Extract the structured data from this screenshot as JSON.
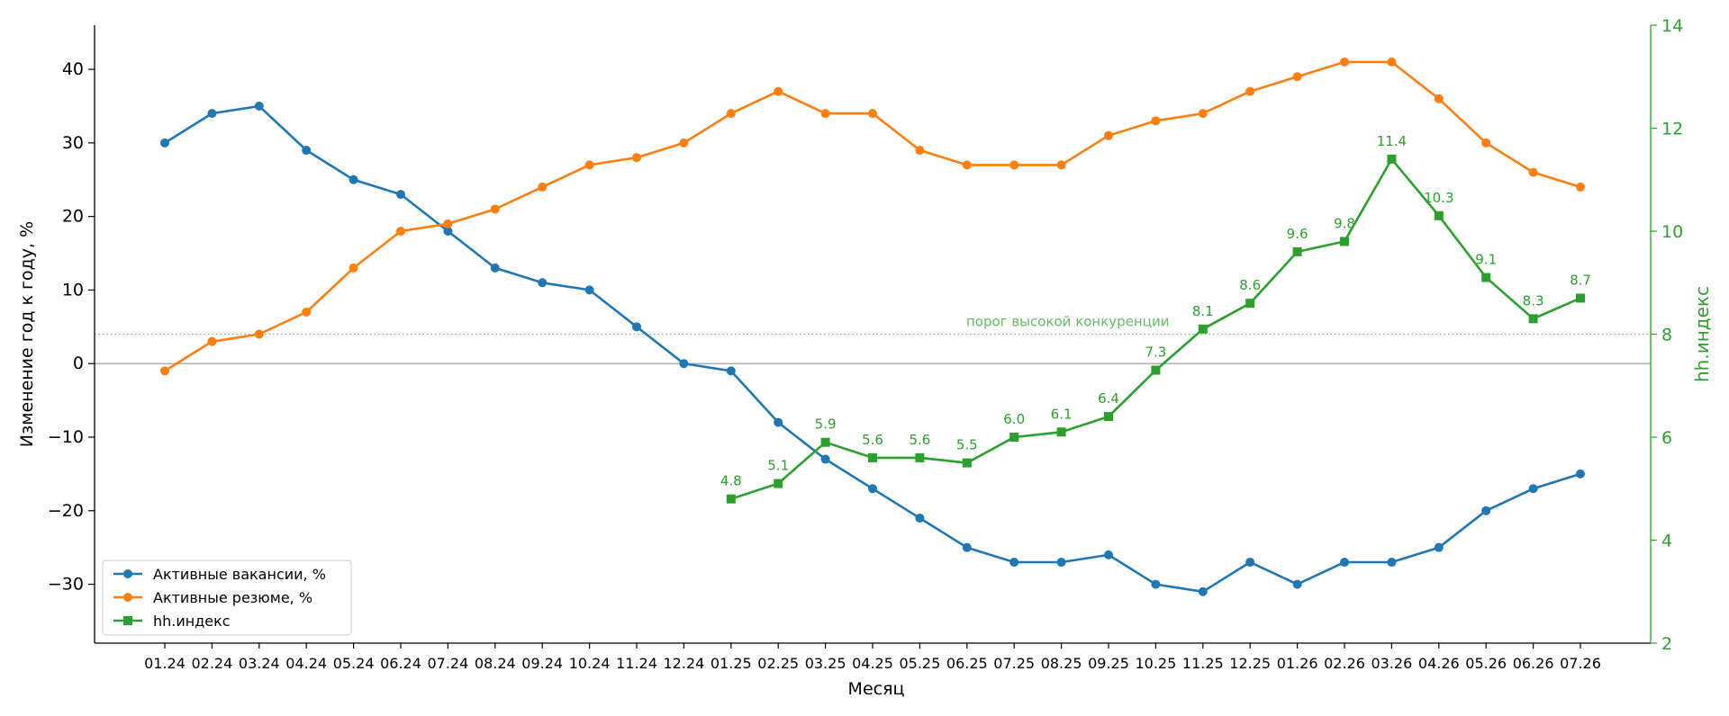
{
  "chart_data": {
    "type": "line",
    "x": [
      "01.24",
      "02.24",
      "03.24",
      "04.24",
      "05.24",
      "06.24",
      "07.24",
      "08.24",
      "09.24",
      "10.24",
      "11.24",
      "12.24",
      "01.25",
      "02.25",
      "03.25",
      "04.25",
      "05.25",
      "06.25",
      "07.25",
      "08.25",
      "09.25",
      "10.25",
      "11.25",
      "12.25",
      "01.26",
      "02.26",
      "03.26",
      "04.26",
      "05.26",
      "06.26",
      "07.26"
    ],
    "xlabel": "Месяц",
    "ylabel": "Изменение год к году, %",
    "y2label": "hh.индекс",
    "ylim": [
      -38,
      46
    ],
    "y2lim": [
      2,
      14
    ],
    "yticks": [
      -30,
      -20,
      -10,
      0,
      10,
      20,
      30,
      40
    ],
    "y2ticks": [
      2,
      4,
      6,
      8,
      10,
      12,
      14
    ],
    "series": [
      {
        "name": "Активные вакансии, %",
        "axis": "left",
        "color": "#1f77b4",
        "marker": "circle",
        "values": [
          30,
          34,
          35,
          29,
          25,
          23,
          18,
          13,
          11,
          10,
          5,
          0,
          -1,
          -8,
          -13,
          -17,
          -21,
          -25,
          -27,
          -27,
          -26,
          -30,
          -31,
          -27,
          -30,
          -27,
          -27,
          -25,
          -20,
          -17,
          -15
        ]
      },
      {
        "name": "Активные резюме, %",
        "axis": "left",
        "color": "#ff7f0e",
        "marker": "circle",
        "values": [
          -1,
          3,
          4,
          7,
          13,
          18,
          19,
          21,
          24,
          27,
          28,
          30,
          34,
          37,
          34,
          34,
          29,
          27,
          27,
          27,
          31,
          33,
          34,
          37,
          39,
          41,
          41,
          36,
          30,
          26,
          24
        ]
      },
      {
        "name": "hh.индекс",
        "axis": "right",
        "color": "#2ca02c",
        "marker": "square",
        "values": [
          null,
          null,
          null,
          null,
          null,
          null,
          null,
          null,
          null,
          null,
          null,
          null,
          4.8,
          5.1,
          5.9,
          5.6,
          5.6,
          5.5,
          6.0,
          6.1,
          6.4,
          7.3,
          8.1,
          8.6,
          9.6,
          9.8,
          11.4,
          10.3,
          9.1,
          8.3,
          8.7
        ],
        "labels": [
          null,
          null,
          null,
          null,
          null,
          null,
          null,
          null,
          null,
          null,
          null,
          null,
          "4.8",
          "5.1",
          "5.9",
          "5.6",
          "5.6",
          "5.5",
          "6.0",
          "6.1",
          "6.4",
          "7.3",
          "8.1",
          "8.6",
          "9.6",
          "9.8",
          "11.4",
          "10.3",
          "9.1",
          "8.3",
          "8.7"
        ]
      }
    ],
    "reference_lines": [
      {
        "axis": "left",
        "value": 0,
        "color": "#b0b0b0",
        "style": "solid"
      },
      {
        "axis": "right",
        "value": 8,
        "color": "#66bb66",
        "style": "dotted",
        "label": "порог высокой конкуренции"
      }
    ],
    "legend": "lower-left",
    "grid": false
  }
}
